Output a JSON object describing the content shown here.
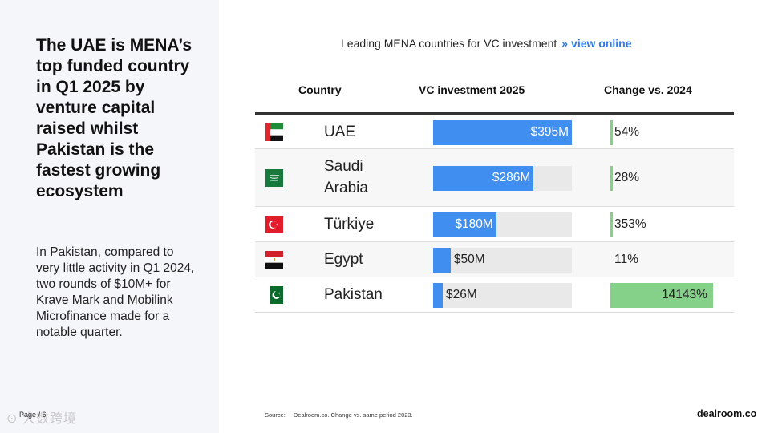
{
  "left": {
    "headline": "The UAE is MENA’s top funded country in Q1 2025 by venture capital raised whilst Pakistan is the fastest growing ecosystem",
    "body": "In Pakistan, compared to very little activity in Q1 2024, two rounds of $10M+ for Krave Mark and Mobilink Microfinance made for a notable quarter.",
    "page": "Page / 6",
    "watermark": "⊙ 大数跨境"
  },
  "chart_header": {
    "title": "Leading MENA countries for VC investment",
    "separator": "»",
    "link": "view online"
  },
  "chart_data": {
    "type": "table",
    "columns": [
      "Country",
      "VC investment 2025",
      "Change vs. 2024"
    ],
    "rows": [
      {
        "country": "UAE",
        "flag": "uae-flag-icon",
        "value": 395,
        "value_label": "$395M",
        "change": 54,
        "change_label": "54%"
      },
      {
        "country": "Saudi Arabia",
        "flag": "saudi-arabia-flag-icon",
        "value": 286,
        "value_label": "$286M",
        "change": 28,
        "change_label": "28%"
      },
      {
        "country": "Türkiye",
        "flag": "turkiye-flag-icon",
        "value": 180,
        "value_label": "$180M",
        "change": 353,
        "change_label": "353%"
      },
      {
        "country": "Egypt",
        "flag": "egypt-flag-icon",
        "value": 50,
        "value_label": "$50M",
        "change": 11,
        "change_label": "11%"
      },
      {
        "country": "Pakistan",
        "flag": "pakistan-flag-icon",
        "value": 26,
        "value_label": "$26M",
        "change": 14143,
        "change_label": "14143%"
      }
    ],
    "value_max": 395,
    "change_max": 14143
  },
  "footer": {
    "source_label": "Source:",
    "source_text": "Dealroom.co. Change vs. same period 2023.",
    "logo": "dealroom.co"
  },
  "colors": {
    "bar": "#3f8ef0",
    "bar_track": "#e9e9e9",
    "change_bar": "#86d18a"
  }
}
